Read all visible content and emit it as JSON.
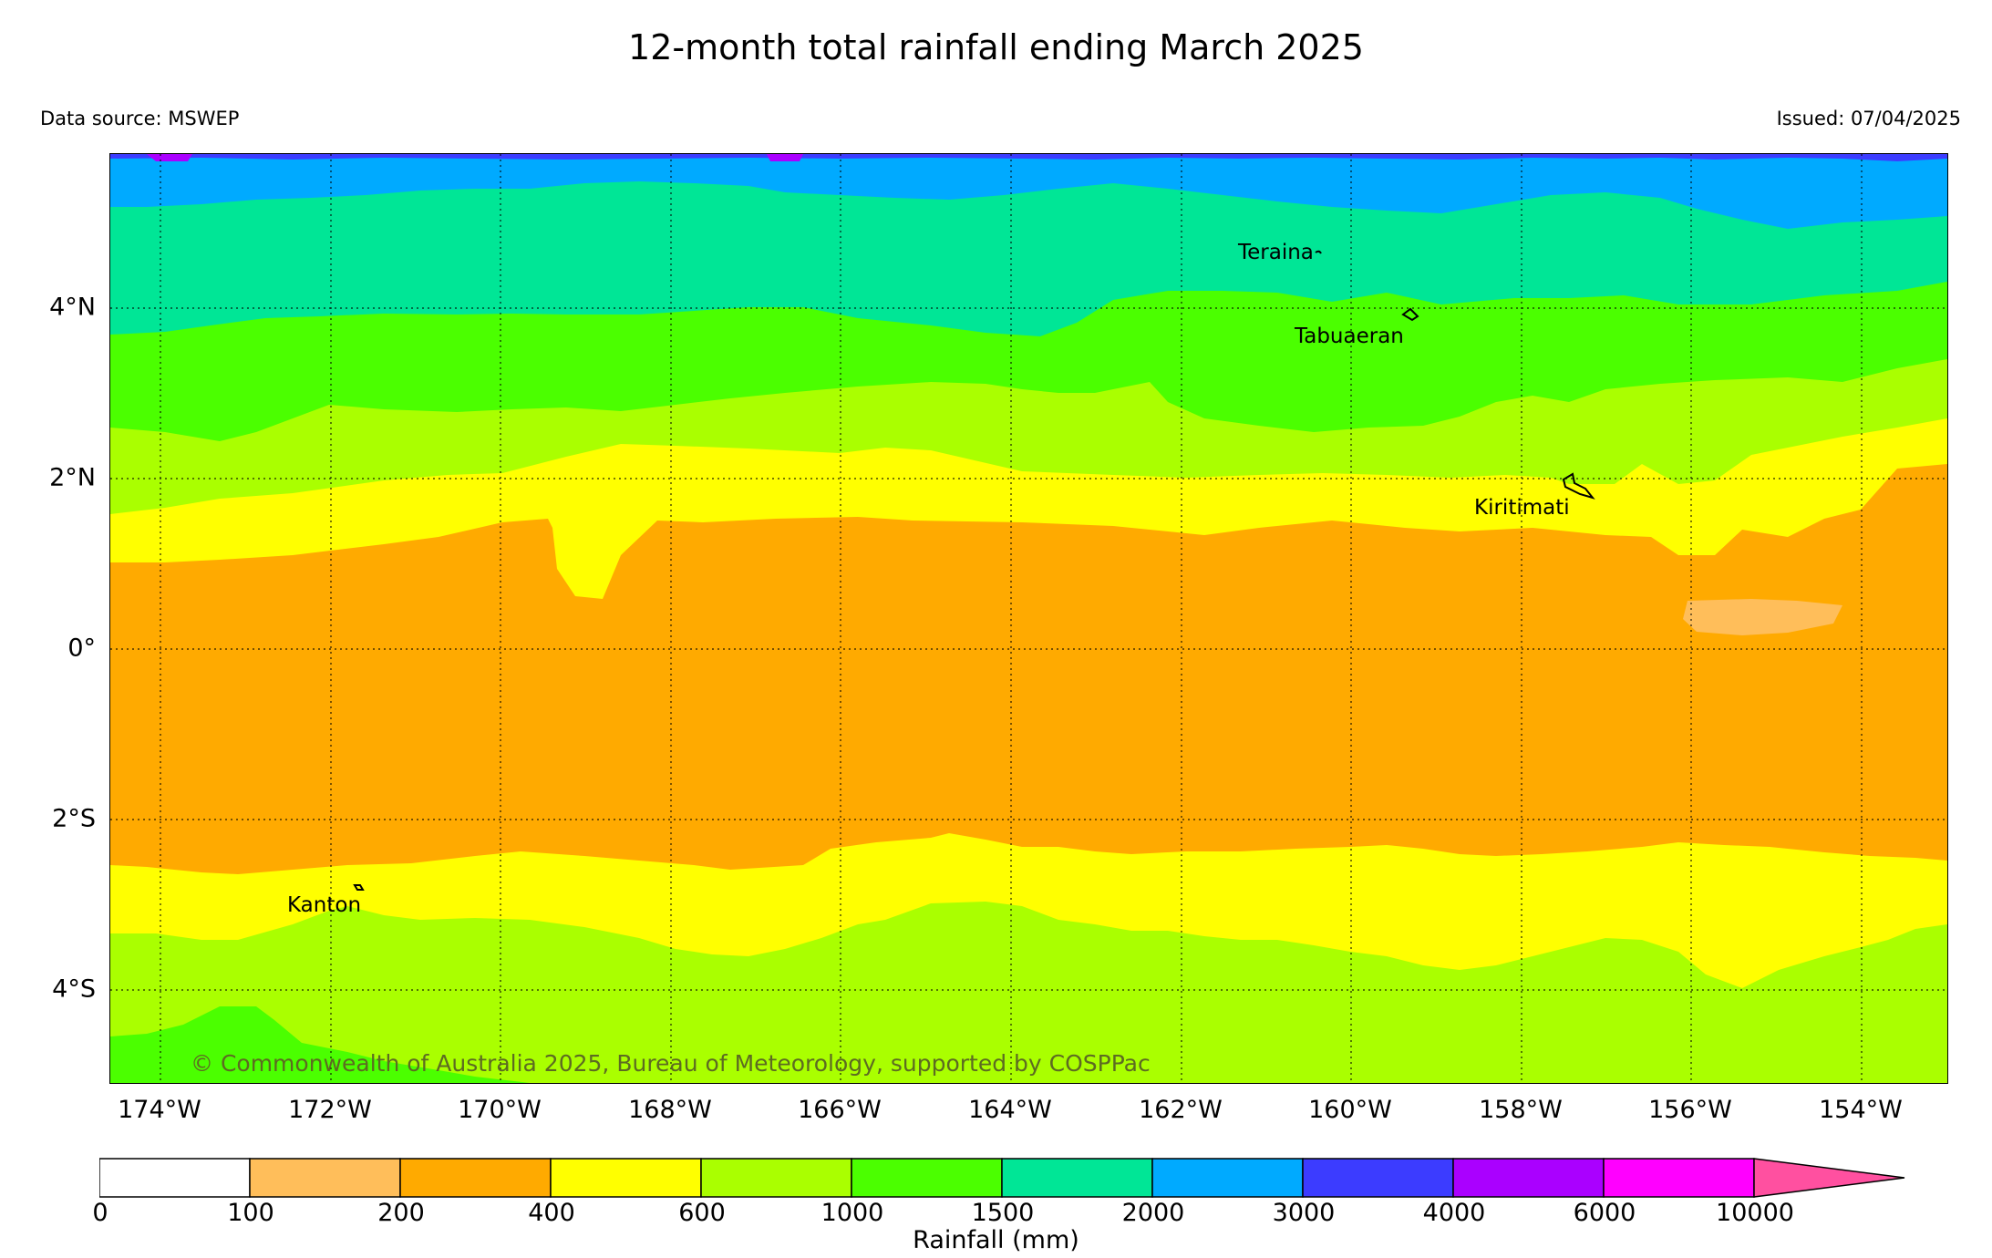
{
  "header": {
    "title": "12-month total rainfall ending March 2025",
    "source": "Data source: MSWEP",
    "issued": "Issued: 07/04/2025"
  },
  "map": {
    "lat_labels": [
      "4°N",
      "2°N",
      "0°",
      "2°S",
      "4°S"
    ],
    "lon_labels": [
      "174°W",
      "172°W",
      "170°W",
      "168°W",
      "166°W",
      "164°W",
      "162°W",
      "160°W",
      "158°W",
      "156°W",
      "154°W"
    ],
    "lat_range": [
      -5.1,
      5.8
    ],
    "lon_range": [
      -174.6,
      -153.0
    ],
    "places": [
      {
        "name": "Teraina",
        "lat": 4.7,
        "lon": -160.4
      },
      {
        "name": "Tabuaeran",
        "lat": 3.9,
        "lon": -159.4
      },
      {
        "name": "Kiritimati",
        "lat": 1.9,
        "lon": -157.4
      },
      {
        "name": "Kanton",
        "lat": -2.8,
        "lon": -171.7
      }
    ],
    "copyright": "© Commonwealth of Australia 2025, Bureau of Meteorology, supported by COSPPac"
  },
  "legend": {
    "label": "Rainfall (mm)",
    "ticks": [
      "0",
      "100",
      "200",
      "400",
      "600",
      "1000",
      "1500",
      "2000",
      "3000",
      "4000",
      "6000",
      "10000"
    ],
    "colors": [
      "#ffffff",
      "#ffbe5a",
      "#ffaa00",
      "#ffff00",
      "#aaff00",
      "#4bff00",
      "#00e696",
      "#00aaff",
      "#3c3cff",
      "#aa00ff",
      "#ff00ff",
      "#ff50a0"
    ]
  }
}
